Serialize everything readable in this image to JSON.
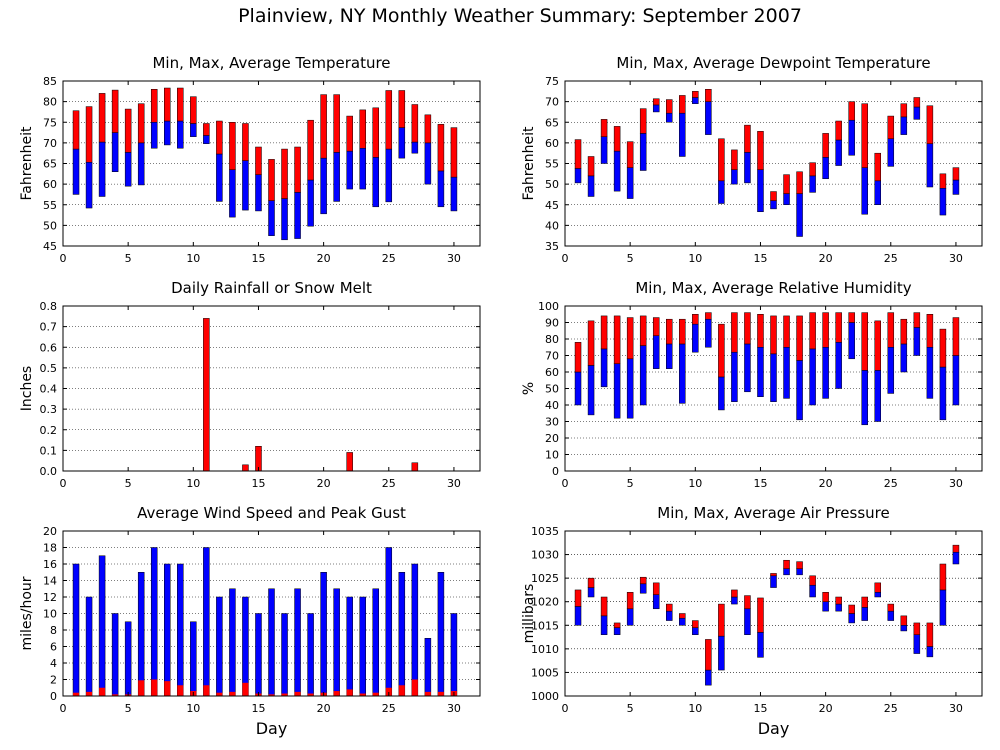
{
  "page_title": "Plainview, NY Monthly Weather Summary: September 2007",
  "colors": {
    "max_bar": "#ff0000",
    "min_bar": "#0000ff",
    "rain": "#ff0000",
    "gust": "#0000ff",
    "avg_wind": "#ff0000",
    "axis": "#000000",
    "grid": "#000000"
  },
  "chart_data": [
    {
      "id": "temperature",
      "type": "bar",
      "subtype": "floating-range",
      "title": "Min, Max, Average Temperature",
      "xlabel": "",
      "ylabel": "Fahrenheit",
      "xlim": [
        0,
        32
      ],
      "ylim": [
        45,
        85
      ],
      "xticks": [
        0,
        5,
        10,
        15,
        20,
        25,
        30
      ],
      "yticks": [
        45,
        50,
        55,
        60,
        65,
        70,
        75,
        80,
        85
      ],
      "grid": true,
      "x": [
        1,
        2,
        3,
        4,
        5,
        6,
        7,
        8,
        9,
        10,
        11,
        12,
        13,
        14,
        15,
        16,
        17,
        18,
        19,
        20,
        21,
        22,
        23,
        24,
        25,
        26,
        27,
        28,
        29,
        30
      ],
      "series": [
        {
          "role": "min",
          "values": [
            57.5,
            54.2,
            57.0,
            63.0,
            59.5,
            59.8,
            68.7,
            69.5,
            68.7,
            71.5,
            69.8,
            55.8,
            52.0,
            53.7,
            53.5,
            47.5,
            46.5,
            46.8,
            49.8,
            52.8,
            55.8,
            58.8,
            58.8,
            54.5,
            55.7,
            66.3,
            67.5,
            60.0,
            54.5,
            53.5
          ]
        },
        {
          "role": "avg",
          "values": [
            68.5,
            65.3,
            70.2,
            72.5,
            67.7,
            70.0,
            75.0,
            75.3,
            75.3,
            74.7,
            71.8,
            67.3,
            63.5,
            65.7,
            62.3,
            56.0,
            56.5,
            58.0,
            61.0,
            66.3,
            67.7,
            68.0,
            68.7,
            66.5,
            68.5,
            73.7,
            70.2,
            70.0,
            63.2,
            61.7
          ]
        },
        {
          "role": "max",
          "values": [
            77.8,
            78.8,
            82.0,
            82.8,
            78.2,
            79.5,
            83.0,
            83.3,
            83.3,
            81.2,
            74.7,
            75.3,
            75.0,
            74.7,
            69.0,
            66.0,
            68.5,
            69.0,
            75.5,
            81.7,
            81.7,
            76.5,
            78.0,
            78.5,
            82.7,
            82.7,
            79.3,
            76.8,
            74.5,
            73.7
          ]
        }
      ]
    },
    {
      "id": "dewpoint",
      "type": "bar",
      "subtype": "floating-range",
      "title": "Min, Max, Average Dewpoint Temperature",
      "xlabel": "",
      "ylabel": "Fahrenheit",
      "xlim": [
        0,
        32
      ],
      "ylim": [
        35,
        75
      ],
      "xticks": [
        0,
        5,
        10,
        15,
        20,
        25,
        30
      ],
      "yticks": [
        35,
        40,
        45,
        50,
        55,
        60,
        65,
        70,
        75
      ],
      "grid": true,
      "x": [
        1,
        2,
        3,
        4,
        5,
        6,
        7,
        8,
        9,
        10,
        11,
        12,
        13,
        14,
        15,
        16,
        17,
        18,
        19,
        20,
        21,
        22,
        23,
        24,
        25,
        26,
        27,
        28,
        29,
        30
      ],
      "series": [
        {
          "role": "min",
          "values": [
            50.3,
            47.0,
            55.0,
            48.3,
            46.5,
            53.3,
            67.5,
            65.0,
            56.7,
            69.5,
            62.0,
            45.3,
            50.0,
            50.3,
            43.3,
            44.0,
            45.0,
            37.3,
            48.0,
            51.3,
            54.5,
            57.0,
            42.7,
            45.0,
            54.3,
            62.0,
            65.7,
            49.3,
            42.5,
            47.5
          ]
        },
        {
          "role": "avg",
          "values": [
            53.8,
            52.0,
            61.5,
            58.0,
            54.0,
            62.3,
            69.2,
            67.2,
            67.2,
            71.0,
            70.0,
            50.8,
            53.5,
            57.7,
            53.5,
            46.0,
            47.7,
            47.7,
            52.0,
            56.5,
            60.7,
            65.5,
            54.0,
            50.8,
            61.0,
            66.3,
            68.7,
            59.8,
            49.0,
            51.0
          ]
        },
        {
          "role": "max",
          "values": [
            60.8,
            56.7,
            65.7,
            64.0,
            60.3,
            68.3,
            70.7,
            70.5,
            71.5,
            72.5,
            73.0,
            61.0,
            58.3,
            64.3,
            62.8,
            48.2,
            52.3,
            53.0,
            55.2,
            62.3,
            65.3,
            70.0,
            69.5,
            57.5,
            66.5,
            69.5,
            71.0,
            69.0,
            52.5,
            54.0
          ]
        }
      ]
    },
    {
      "id": "rainfall",
      "type": "bar",
      "title": "Daily Rainfall or Snow Melt",
      "xlabel": "",
      "ylabel": "Inches",
      "xlim": [
        0,
        32
      ],
      "ylim": [
        0,
        0.8
      ],
      "xticks": [
        0,
        5,
        10,
        15,
        20,
        25,
        30
      ],
      "yticks": [
        0,
        0.1,
        0.2,
        0.3,
        0.4,
        0.5,
        0.6,
        0.7,
        0.8
      ],
      "ytick_labels": [
        "0.0",
        "0.1",
        "0.2",
        "0.3",
        "0.4",
        "0.5",
        "0.6",
        "0.7",
        "0.8"
      ],
      "grid": true,
      "x": [
        1,
        2,
        3,
        4,
        5,
        6,
        7,
        8,
        9,
        10,
        11,
        12,
        13,
        14,
        15,
        16,
        17,
        18,
        19,
        20,
        21,
        22,
        23,
        24,
        25,
        26,
        27,
        28,
        29,
        30
      ],
      "series": [
        {
          "role": "rain",
          "values": [
            0,
            0,
            0,
            0,
            0,
            0,
            0,
            0,
            0,
            0,
            0.74,
            0,
            0,
            0.03,
            0.12,
            0,
            0,
            0,
            0,
            0,
            0,
            0.09,
            0,
            0,
            0,
            0,
            0.04,
            0,
            0,
            0
          ]
        }
      ]
    },
    {
      "id": "humidity",
      "type": "bar",
      "subtype": "floating-range",
      "title": "Min, Max, Average Relative Humidity",
      "xlabel": "",
      "ylabel": "%",
      "xlim": [
        0,
        32
      ],
      "ylim": [
        0,
        100
      ],
      "xticks": [
        0,
        5,
        10,
        15,
        20,
        25,
        30
      ],
      "yticks": [
        0,
        10,
        20,
        30,
        40,
        50,
        60,
        70,
        80,
        90,
        100
      ],
      "grid": true,
      "x": [
        1,
        2,
        3,
        4,
        5,
        6,
        7,
        8,
        9,
        10,
        11,
        12,
        13,
        14,
        15,
        16,
        17,
        18,
        19,
        20,
        21,
        22,
        23,
        24,
        25,
        26,
        27,
        28,
        29,
        30
      ],
      "series": [
        {
          "role": "min",
          "values": [
            40,
            34,
            51,
            32,
            32,
            40,
            62,
            62,
            41,
            72,
            75,
            37,
            42,
            48,
            45,
            42,
            44,
            31,
            40,
            44,
            50,
            68,
            28,
            30,
            47,
            60,
            70,
            44,
            31,
            40
          ]
        },
        {
          "role": "avg",
          "values": [
            60,
            64,
            74,
            65,
            68,
            76,
            82,
            77,
            77,
            89,
            92,
            57,
            72,
            77,
            75,
            71,
            75,
            67,
            74,
            75,
            78,
            90,
            61,
            61,
            75,
            77,
            87,
            75,
            63,
            70
          ]
        },
        {
          "role": "max",
          "values": [
            78,
            91,
            94,
            94,
            93,
            94,
            93,
            92,
            92,
            95,
            96,
            89,
            96,
            96,
            95,
            94,
            94,
            94,
            96,
            96,
            96,
            96,
            96,
            91,
            96,
            92,
            96,
            95,
            86,
            93
          ]
        }
      ]
    },
    {
      "id": "wind",
      "type": "bar",
      "title": "Average Wind Speed and Peak Gust",
      "xlabel": "Day",
      "ylabel": "miles/hour",
      "xlim": [
        0,
        32
      ],
      "ylim": [
        0,
        20
      ],
      "xticks": [
        0,
        5,
        10,
        15,
        20,
        25,
        30
      ],
      "yticks": [
        0,
        2,
        4,
        6,
        8,
        10,
        12,
        14,
        16,
        18,
        20
      ],
      "grid": true,
      "x": [
        1,
        2,
        3,
        4,
        5,
        6,
        7,
        8,
        9,
        10,
        11,
        12,
        13,
        14,
        15,
        16,
        17,
        18,
        19,
        20,
        21,
        22,
        23,
        24,
        25,
        26,
        27,
        28,
        29,
        30
      ],
      "series": [
        {
          "role": "gust",
          "values": [
            16,
            12,
            17,
            10,
            9,
            15,
            18,
            16,
            16,
            9,
            18,
            12,
            13,
            12,
            10,
            13,
            10,
            13,
            10,
            15,
            13,
            12,
            12,
            13,
            18,
            15,
            16,
            7,
            15,
            10
          ]
        },
        {
          "role": "avg",
          "values": [
            0.4,
            0.5,
            1.0,
            0.2,
            0.2,
            1.9,
            2.0,
            1.8,
            1.3,
            0.6,
            1.3,
            0.4,
            0.5,
            1.6,
            0.3,
            0.2,
            0.3,
            0.5,
            0.3,
            0.4,
            0.6,
            0.8,
            0.3,
            0.4,
            1.0,
            1.3,
            2.0,
            0.5,
            0.5,
            0.6
          ]
        }
      ]
    },
    {
      "id": "pressure",
      "type": "bar",
      "subtype": "floating-range",
      "title": "Min, Max, Average Air Pressure",
      "xlabel": "Day",
      "ylabel": "millibars",
      "xlim": [
        0,
        32
      ],
      "ylim": [
        1000,
        1035
      ],
      "xticks": [
        0,
        5,
        10,
        15,
        20,
        25,
        30
      ],
      "yticks": [
        1000,
        1005,
        1010,
        1015,
        1020,
        1025,
        1030,
        1035
      ],
      "grid": true,
      "x": [
        1,
        2,
        3,
        4,
        5,
        6,
        7,
        8,
        9,
        10,
        11,
        12,
        13,
        14,
        15,
        16,
        17,
        18,
        19,
        20,
        21,
        22,
        23,
        24,
        25,
        26,
        27,
        28,
        29,
        30
      ],
      "series": [
        {
          "role": "min",
          "values": [
            1015.0,
            1021.0,
            1013.0,
            1013.0,
            1015.0,
            1021.8,
            1018.5,
            1016.0,
            1015.0,
            1013.0,
            1002.3,
            1005.5,
            1019.5,
            1013.0,
            1008.2,
            1023.0,
            1025.7,
            1025.7,
            1021.0,
            1018.0,
            1018.0,
            1015.5,
            1016.0,
            1021.0,
            1016.0,
            1013.8,
            1009.0,
            1008.3,
            1015.0,
            1028.0
          ]
        },
        {
          "role": "avg",
          "values": [
            1019.0,
            1023.0,
            1017.0,
            1014.5,
            1018.5,
            1023.8,
            1021.5,
            1018.0,
            1016.5,
            1014.5,
            1005.5,
            1012.7,
            1021.0,
            1018.5,
            1013.5,
            1025.5,
            1027.0,
            1027.0,
            1023.5,
            1020.0,
            1019.5,
            1017.5,
            1018.8,
            1022.0,
            1018.0,
            1015.0,
            1013.0,
            1010.5,
            1022.5,
            1030.5
          ]
        },
        {
          "role": "max",
          "values": [
            1022.5,
            1025.0,
            1021.0,
            1015.5,
            1022.0,
            1025.2,
            1024.0,
            1019.5,
            1017.5,
            1016.0,
            1012.0,
            1019.5,
            1022.5,
            1021.3,
            1020.8,
            1026.0,
            1028.8,
            1028.5,
            1025.5,
            1022.0,
            1021.0,
            1019.3,
            1021.0,
            1024.0,
            1019.5,
            1017.0,
            1015.5,
            1015.5,
            1028.0,
            1032.0
          ]
        }
      ]
    }
  ]
}
